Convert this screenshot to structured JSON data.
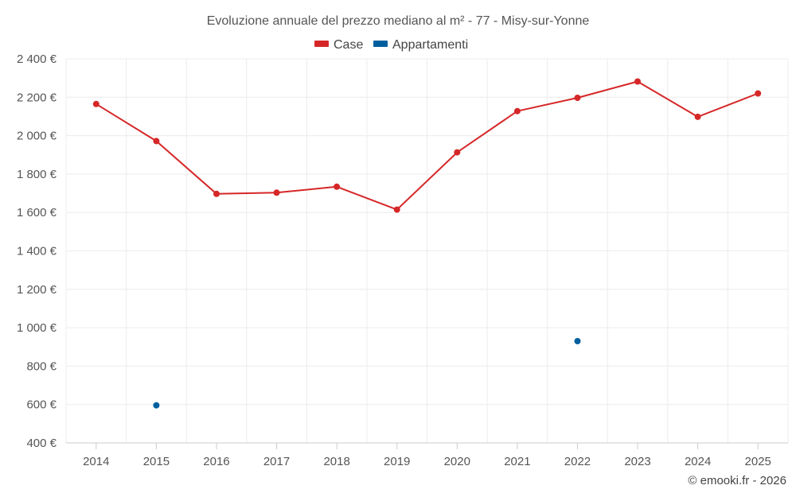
{
  "chart_data": {
    "type": "line",
    "title": "Evoluzione annuale del prezzo mediano al m² - 77 - Misy-sur-Yonne",
    "categories": [
      "2014",
      "2015",
      "2016",
      "2017",
      "2018",
      "2019",
      "2020",
      "2021",
      "2022",
      "2023",
      "2024",
      "2025"
    ],
    "series": [
      {
        "name": "Case",
        "color": "#d62728",
        "values": [
          2165,
          1972,
          1697,
          1703,
          1734,
          1615,
          1913,
          2128,
          2197,
          2282,
          2098,
          2220
        ]
      },
      {
        "name": "Appartamenti",
        "color": "#005f9e",
        "values": [
          null,
          596,
          null,
          null,
          null,
          null,
          null,
          null,
          930,
          null,
          null,
          null
        ]
      }
    ],
    "ylim": [
      400,
      2400
    ],
    "yticks": [
      400,
      600,
      800,
      1000,
      1200,
      1400,
      1600,
      1800,
      2000,
      2200,
      2400
    ],
    "ytick_labels": [
      "400 €",
      "600 €",
      "800 €",
      "1 000 €",
      "1 200 €",
      "1 400 €",
      "1 600 €",
      "1 800 €",
      "2 000 €",
      "2 200 €",
      "2 400 €"
    ],
    "xlabel": "",
    "ylabel": "",
    "grid": true,
    "legend_position": "top-center"
  },
  "credit": "© emooki.fr - 2026"
}
